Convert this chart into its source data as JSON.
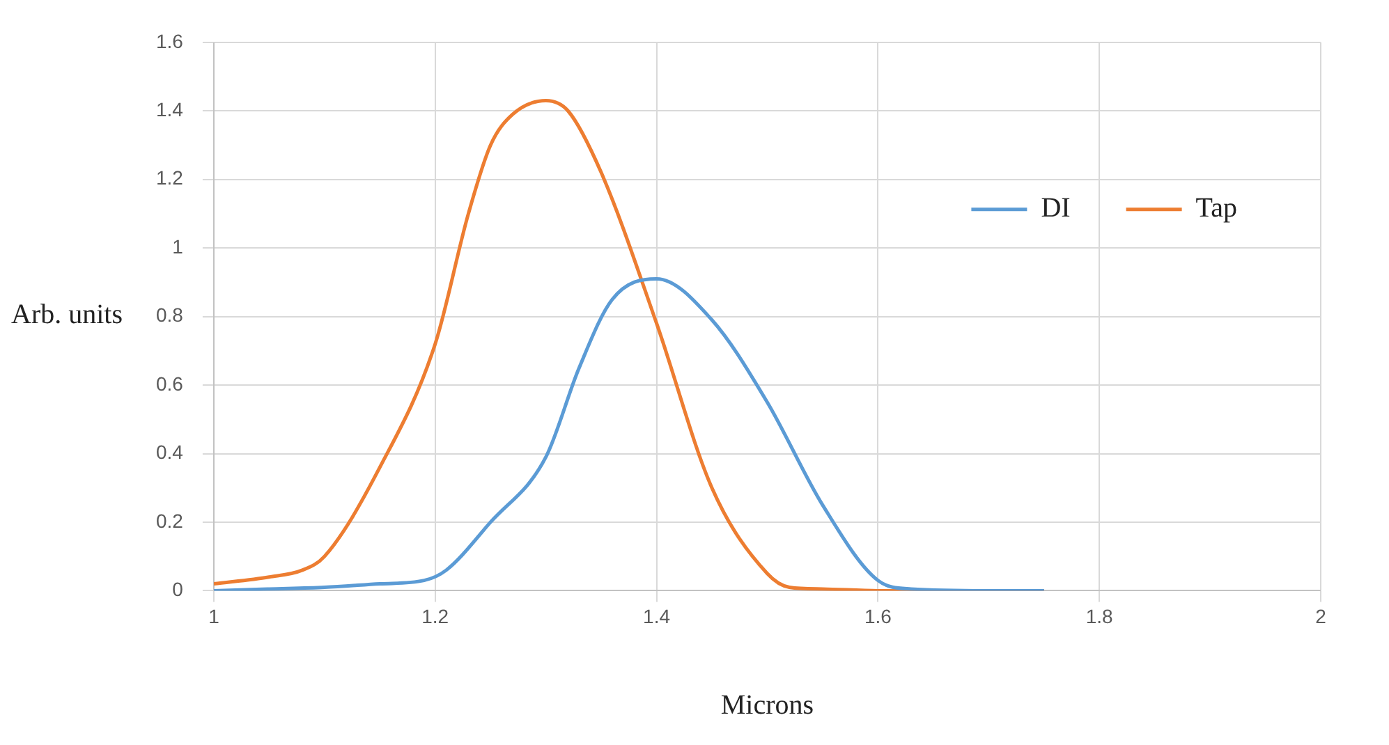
{
  "chart_data": {
    "type": "line",
    "xlabel": "Microns",
    "ylabel": "Arb. units",
    "xlim": [
      1,
      2
    ],
    "xticks": [
      1,
      1.2,
      1.4,
      1.6,
      1.8,
      2
    ],
    "ylim": [
      0,
      1.6
    ],
    "yticks": [
      0,
      0.2,
      0.4,
      0.6,
      0.8,
      1,
      1.2,
      1.4,
      1.6
    ],
    "grid": true,
    "legend": "top right",
    "marker": "none",
    "series": [
      {
        "name": "DI",
        "color": "#5b9bd5",
        "x": [
          1,
          1.05,
          1.1,
          1.15,
          1.19,
          1.21,
          1.25,
          1.3,
          1.33,
          1.36,
          1.4,
          1.45,
          1.5,
          1.55,
          1.6,
          1.63,
          1.7,
          1.75
        ],
        "values": [
          0,
          0.005,
          0.01,
          0.02,
          0.03,
          0.06,
          0.2,
          0.39,
          0.65,
          0.85,
          0.91,
          0.79,
          0.55,
          0.25,
          0.03,
          0.005,
          0,
          0
        ]
      },
      {
        "name": "Tap",
        "color": "#ed7d31",
        "x": [
          1,
          1.05,
          1.08,
          1.1,
          1.15,
          1.2,
          1.23,
          1.25,
          1.27,
          1.3,
          1.32,
          1.35,
          1.4,
          1.45,
          1.5,
          1.52,
          1.55,
          1.6,
          1.7,
          1.75
        ],
        "values": [
          0.02,
          0.04,
          0.06,
          0.1,
          0.36,
          0.72,
          1.1,
          1.3,
          1.39,
          1.43,
          1.4,
          1.22,
          0.78,
          0.3,
          0.05,
          0.01,
          0.005,
          0,
          0,
          0
        ]
      }
    ]
  }
}
